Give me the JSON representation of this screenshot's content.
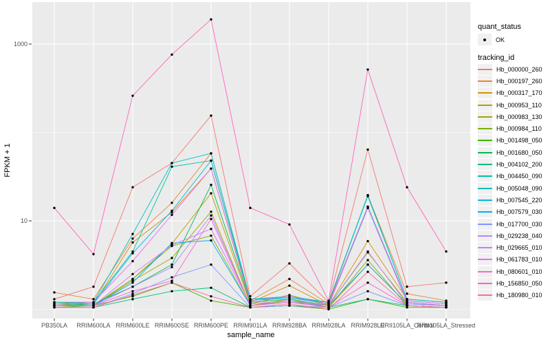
{
  "chart_data": {
    "type": "line",
    "title": "",
    "xlabel": "sample_name",
    "ylabel": "FPKM + 1",
    "y_scale": "log10",
    "ylim": [
      0.75,
      3000
    ],
    "y_major_breaks": [
      1000,
      10
    ],
    "y_minor_breaks": [
      100,
      1
    ],
    "grid": true,
    "legend_position": "right",
    "panel_bg": "#EBEBEB",
    "grid_color": "#FFFFFF",
    "point_color": "#000000",
    "quant_legend": {
      "title": "quant_status",
      "items": [
        {
          "label": "OK",
          "marker": "point",
          "color": "#000000"
        }
      ]
    },
    "series_legend_title": "tracking_id",
    "categories": [
      "PB350LA",
      "RRIM600LA",
      "RRIM600LE",
      "RRIM600SE",
      "RRIM600PE",
      "RRIM901LA",
      "RRIM928BA",
      "RRIM928LA",
      "RRIM928LE",
      "RRII105LA_Control",
      "RRII105LA_Stressed"
    ],
    "series": [
      {
        "name": "Hb_000000_260",
        "color": "#F8766D",
        "values": [
          1.3,
          1.8,
          24,
          45,
          155,
          1.4,
          3.3,
          1.2,
          64,
          1.8,
          2.0
        ]
      },
      {
        "name": "Hb_000197_260",
        "color": "#EA8331",
        "values": [
          1.55,
          1.3,
          6.3,
          16,
          58,
          1.25,
          2.2,
          1.15,
          19.5,
          1.5,
          1.25
        ]
      },
      {
        "name": "Hb_000317_170",
        "color": "#D89000",
        "values": [
          1.2,
          1.15,
          5.7,
          12.5,
          39,
          1.2,
          1.85,
          1.1,
          5.9,
          1.3,
          1.2
        ]
      },
      {
        "name": "Hb_000953_110",
        "color": "#C09B00",
        "values": [
          1.15,
          1.1,
          2.2,
          5.5,
          20.5,
          1.15,
          1.45,
          1.1,
          4.4,
          1.2,
          1.1
        ]
      },
      {
        "name": "Hb_000983_130",
        "color": "#A3A500",
        "values": [
          1.1,
          1.1,
          2.1,
          3.8,
          12.7,
          1.1,
          1.3,
          1.05,
          3.2,
          1.15,
          1.1
        ]
      },
      {
        "name": "Hb_000984_110",
        "color": "#7CAE00",
        "values": [
          1.1,
          1.1,
          2.2,
          5.2,
          6.8,
          1.1,
          1.25,
          1.05,
          3.6,
          1.1,
          1.05
        ]
      },
      {
        "name": "Hb_001498_050",
        "color": "#39B600",
        "values": [
          1.05,
          1.1,
          1.4,
          2.0,
          1.25,
          1.05,
          1.1,
          1.0,
          1.3,
          1.05,
          1.05
        ]
      },
      {
        "name": "Hb_001680_050",
        "color": "#00BB4E",
        "values": [
          1.1,
          1.15,
          1.8,
          3.2,
          25.5,
          1.2,
          1.3,
          1.1,
          14,
          1.2,
          1.1
        ]
      },
      {
        "name": "Hb_004102_200",
        "color": "#00BF7D",
        "values": [
          1.05,
          1.05,
          1.3,
          1.6,
          1.75,
          1.05,
          1.1,
          1.05,
          1.3,
          1.1,
          1.05
        ]
      },
      {
        "name": "Hb_004450_090",
        "color": "#00C1A3",
        "values": [
          1.2,
          1.2,
          4.5,
          41,
          48,
          1.3,
          1.35,
          1.2,
          19.5,
          1.3,
          1.2
        ]
      },
      {
        "name": "Hb_005048_090",
        "color": "#00BFC4",
        "values": [
          1.2,
          1.2,
          7.1,
          45,
          58,
          1.3,
          1.4,
          1.2,
          19,
          1.3,
          1.2
        ]
      },
      {
        "name": "Hb_007545_220",
        "color": "#00B9E3",
        "values": [
          1.15,
          1.15,
          4.3,
          13,
          48,
          1.25,
          1.35,
          1.15,
          14.5,
          1.25,
          1.15
        ]
      },
      {
        "name": "Hb_007579_030",
        "color": "#00ACFC",
        "values": [
          1.1,
          1.1,
          2.0,
          5.6,
          6.0,
          1.1,
          1.2,
          1.1,
          3.2,
          1.15,
          1.1
        ]
      },
      {
        "name": "Hb_017700_030",
        "color": "#7F96FF",
        "values": [
          1.05,
          1.05,
          1.5,
          2.3,
          3.2,
          1.05,
          1.1,
          1.05,
          1.6,
          1.1,
          1.05
        ]
      },
      {
        "name": "Hb_029238_040",
        "color": "#AE87FF",
        "values": [
          1.1,
          1.1,
          1.8,
          3.0,
          11.5,
          1.1,
          1.2,
          1.1,
          4.5,
          1.15,
          1.1
        ]
      },
      {
        "name": "Hb_029665_010",
        "color": "#D277FF",
        "values": [
          1.1,
          1.1,
          2.5,
          5.3,
          8.1,
          1.15,
          1.25,
          1.1,
          14.2,
          1.2,
          1.1
        ]
      },
      {
        "name": "Hb_061783_010",
        "color": "#E76BF3",
        "values": [
          1.15,
          1.2,
          3.5,
          11.7,
          39,
          1.25,
          1.4,
          1.15,
          14,
          1.25,
          1.15
        ]
      },
      {
        "name": "Hb_080601_010",
        "color": "#FA62DB",
        "values": [
          1.1,
          1.1,
          1.6,
          2.1,
          10.5,
          1.1,
          1.2,
          1.05,
          2.0,
          1.1,
          1.05
        ]
      },
      {
        "name": "Hb_156850_050",
        "color": "#FF62BC",
        "values": [
          14,
          4.2,
          260,
          760,
          1900,
          14,
          9.1,
          1.25,
          515,
          24,
          4.5
        ]
      },
      {
        "name": "Hb_180980_010",
        "color": "#FF6A98",
        "values": [
          1.05,
          1.05,
          1.45,
          2.0,
          1.4,
          1.05,
          1.15,
          1.0,
          2.65,
          1.1,
          1.05
        ]
      }
    ]
  }
}
